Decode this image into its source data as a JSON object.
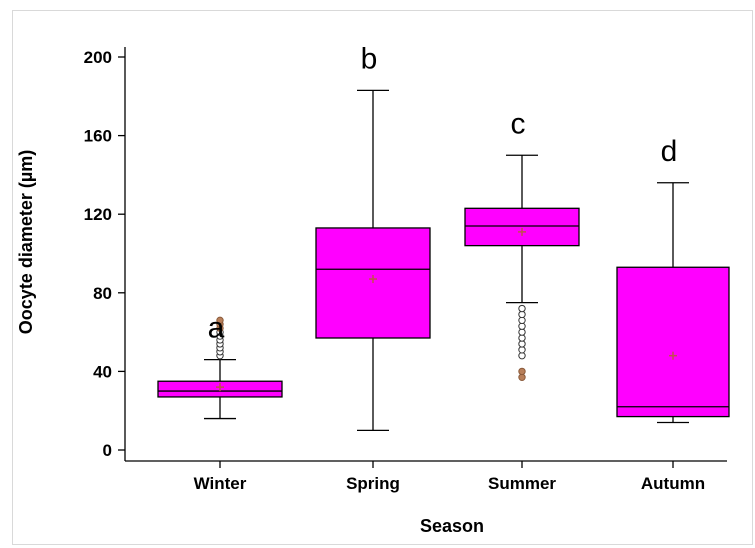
{
  "chart_data": {
    "type": "box",
    "title": "",
    "xlabel": "Season",
    "ylabel": "Oocyte diameter (µm)",
    "ylim": [
      0,
      200
    ],
    "yticks": [
      0,
      40,
      80,
      120,
      160,
      200
    ],
    "grid": false,
    "legend": "none",
    "box_color": "#ff00ff",
    "mean_marker_color": "#c0504d",
    "categories": [
      "Winter",
      "Spring",
      "Summer",
      "Autumn"
    ],
    "boxes": [
      {
        "category": "Winter",
        "whisker_low": 16,
        "q1": 27,
        "median": 30,
        "q3": 35,
        "whisker_high": 46,
        "mean": 32,
        "letter": "a",
        "outliers": [
          48,
          50,
          52,
          54,
          56,
          58,
          60,
          62,
          64,
          66
        ]
      },
      {
        "category": "Spring",
        "whisker_low": 10,
        "q1": 57,
        "median": 92,
        "q3": 113,
        "whisker_high": 183,
        "mean": 87,
        "letter": "b",
        "outliers": []
      },
      {
        "category": "Summer",
        "whisker_low": 75,
        "q1": 104,
        "median": 114,
        "q3": 123,
        "whisker_high": 150,
        "mean": 111,
        "letter": "c",
        "outliers": [
          37,
          40,
          48,
          51,
          54,
          57,
          60,
          63,
          66,
          69,
          72
        ]
      },
      {
        "category": "Autumn",
        "whisker_low": 14,
        "q1": 17,
        "median": 22,
        "q3": 93,
        "whisker_high": 136,
        "mean": 48,
        "letter": "d",
        "outliers": []
      }
    ]
  }
}
